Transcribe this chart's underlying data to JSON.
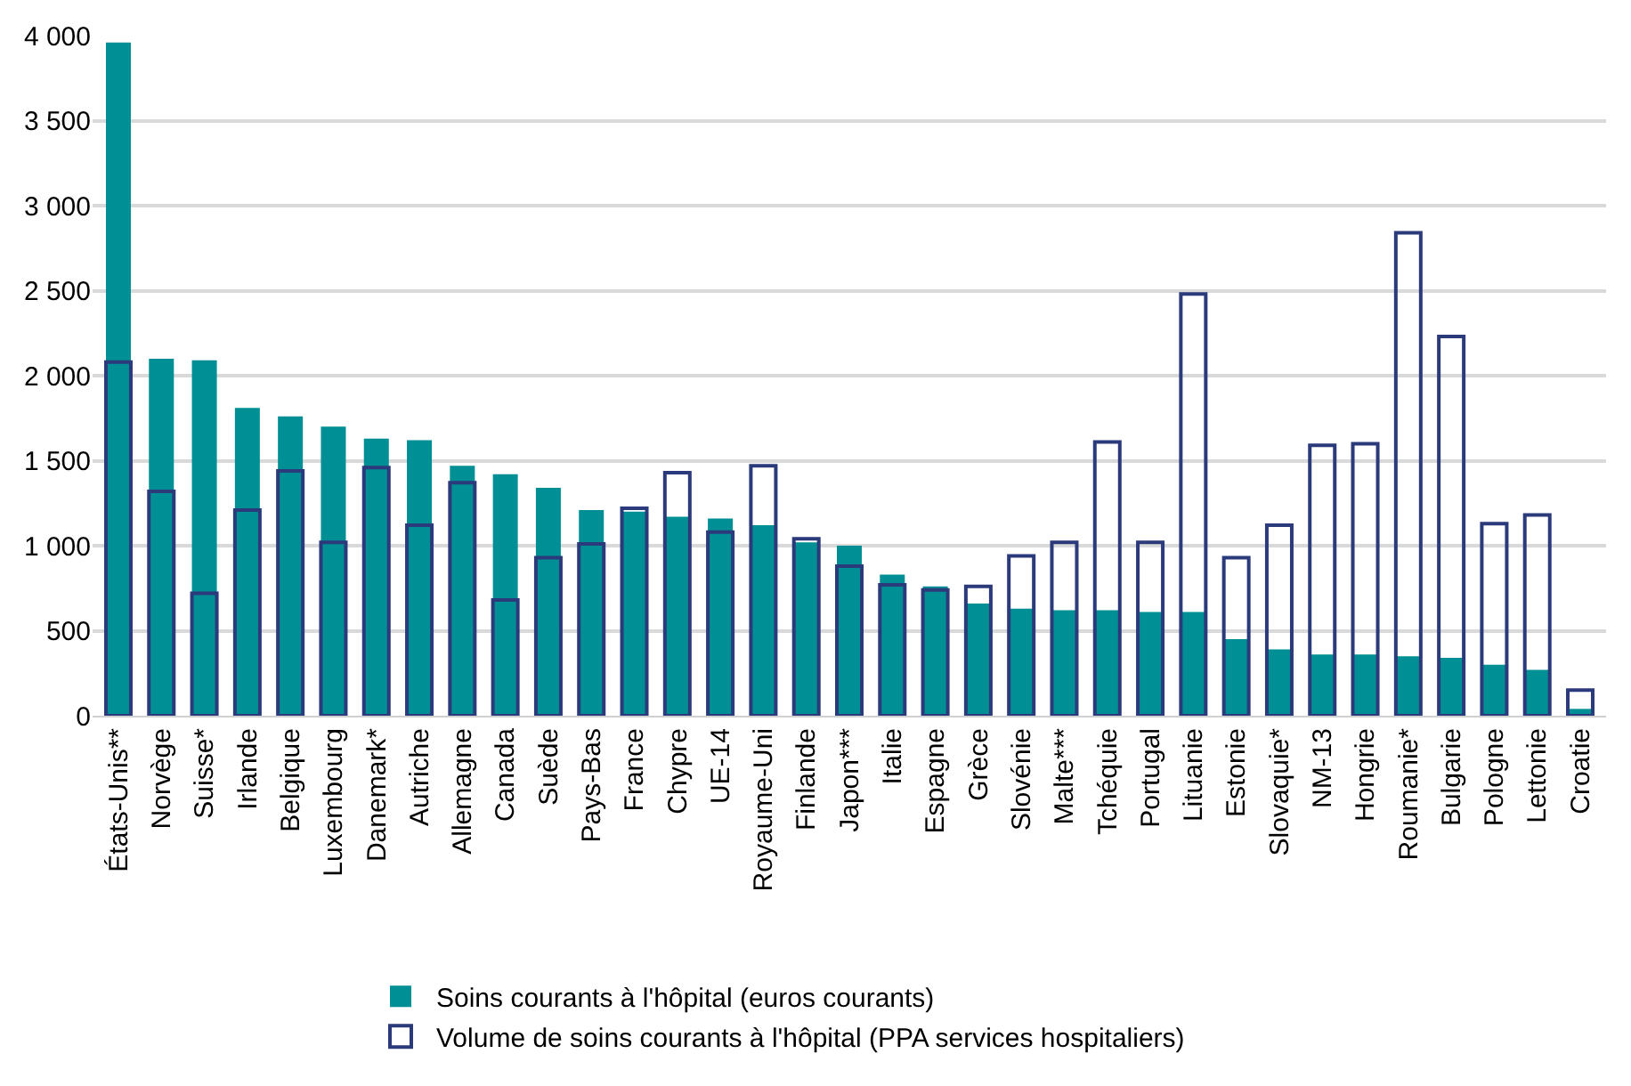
{
  "chart_data": {
    "type": "bar",
    "categories": [
      "États-Unis**",
      "Norvège",
      "Suisse*",
      "Irlande",
      "Belgique",
      "Luxembourg",
      "Danemark*",
      "Autriche",
      "Allemagne",
      "Canada",
      "Suède",
      "Pays-Bas",
      "France",
      "Chypre",
      "UE-14",
      "Royaume-Uni",
      "Finlande",
      "Japon***",
      "Italie",
      "Espagne",
      "Grèce",
      "Slovénie",
      "Malte***",
      "Tchéquie",
      "Portugal",
      "Lituanie",
      "Estonie",
      "Slovaquie*",
      "NM-13",
      "Hongrie",
      "Roumanie*",
      "Bulgarie",
      "Pologne",
      "Lettonie",
      "Croatie"
    ],
    "series": [
      {
        "name": "Soins courants à l'hôpital (euros courants)",
        "color": "#008f94",
        "values": [
          3960,
          2100,
          2090,
          1810,
          1760,
          1700,
          1630,
          1620,
          1470,
          1420,
          1340,
          1210,
          1200,
          1170,
          1160,
          1120,
          1020,
          1000,
          830,
          760,
          660,
          630,
          620,
          620,
          610,
          610,
          450,
          390,
          360,
          360,
          350,
          340,
          300,
          270,
          40
        ]
      },
      {
        "name": "Volume de soins courants à l'hôpital (PPA services hospitaliers)",
        "color": "#2b3a7a",
        "values": [
          2080,
          1320,
          720,
          1210,
          1440,
          1020,
          1460,
          1120,
          1370,
          680,
          930,
          1010,
          1220,
          1430,
          1080,
          1470,
          1040,
          880,
          770,
          740,
          760,
          940,
          1020,
          1610,
          1020,
          2480,
          930,
          1120,
          1590,
          1600,
          2840,
          2230,
          1130,
          1180,
          150
        ]
      }
    ],
    "ylim": [
      0,
      4000
    ],
    "yticks": [
      0,
      500,
      {
        "value": 1000,
        "label": "1 000"
      },
      {
        "value": 1500,
        "label": "1 500"
      },
      {
        "value": 2000,
        "label": "2 000"
      },
      {
        "value": 2500,
        "label": "2 500"
      },
      {
        "value": 3000,
        "label": "3 000"
      },
      {
        "value": 3500,
        "label": "3 500"
      },
      {
        "value": 4000,
        "label": "4 000"
      }
    ],
    "grid": "y",
    "legend": "bottom"
  }
}
